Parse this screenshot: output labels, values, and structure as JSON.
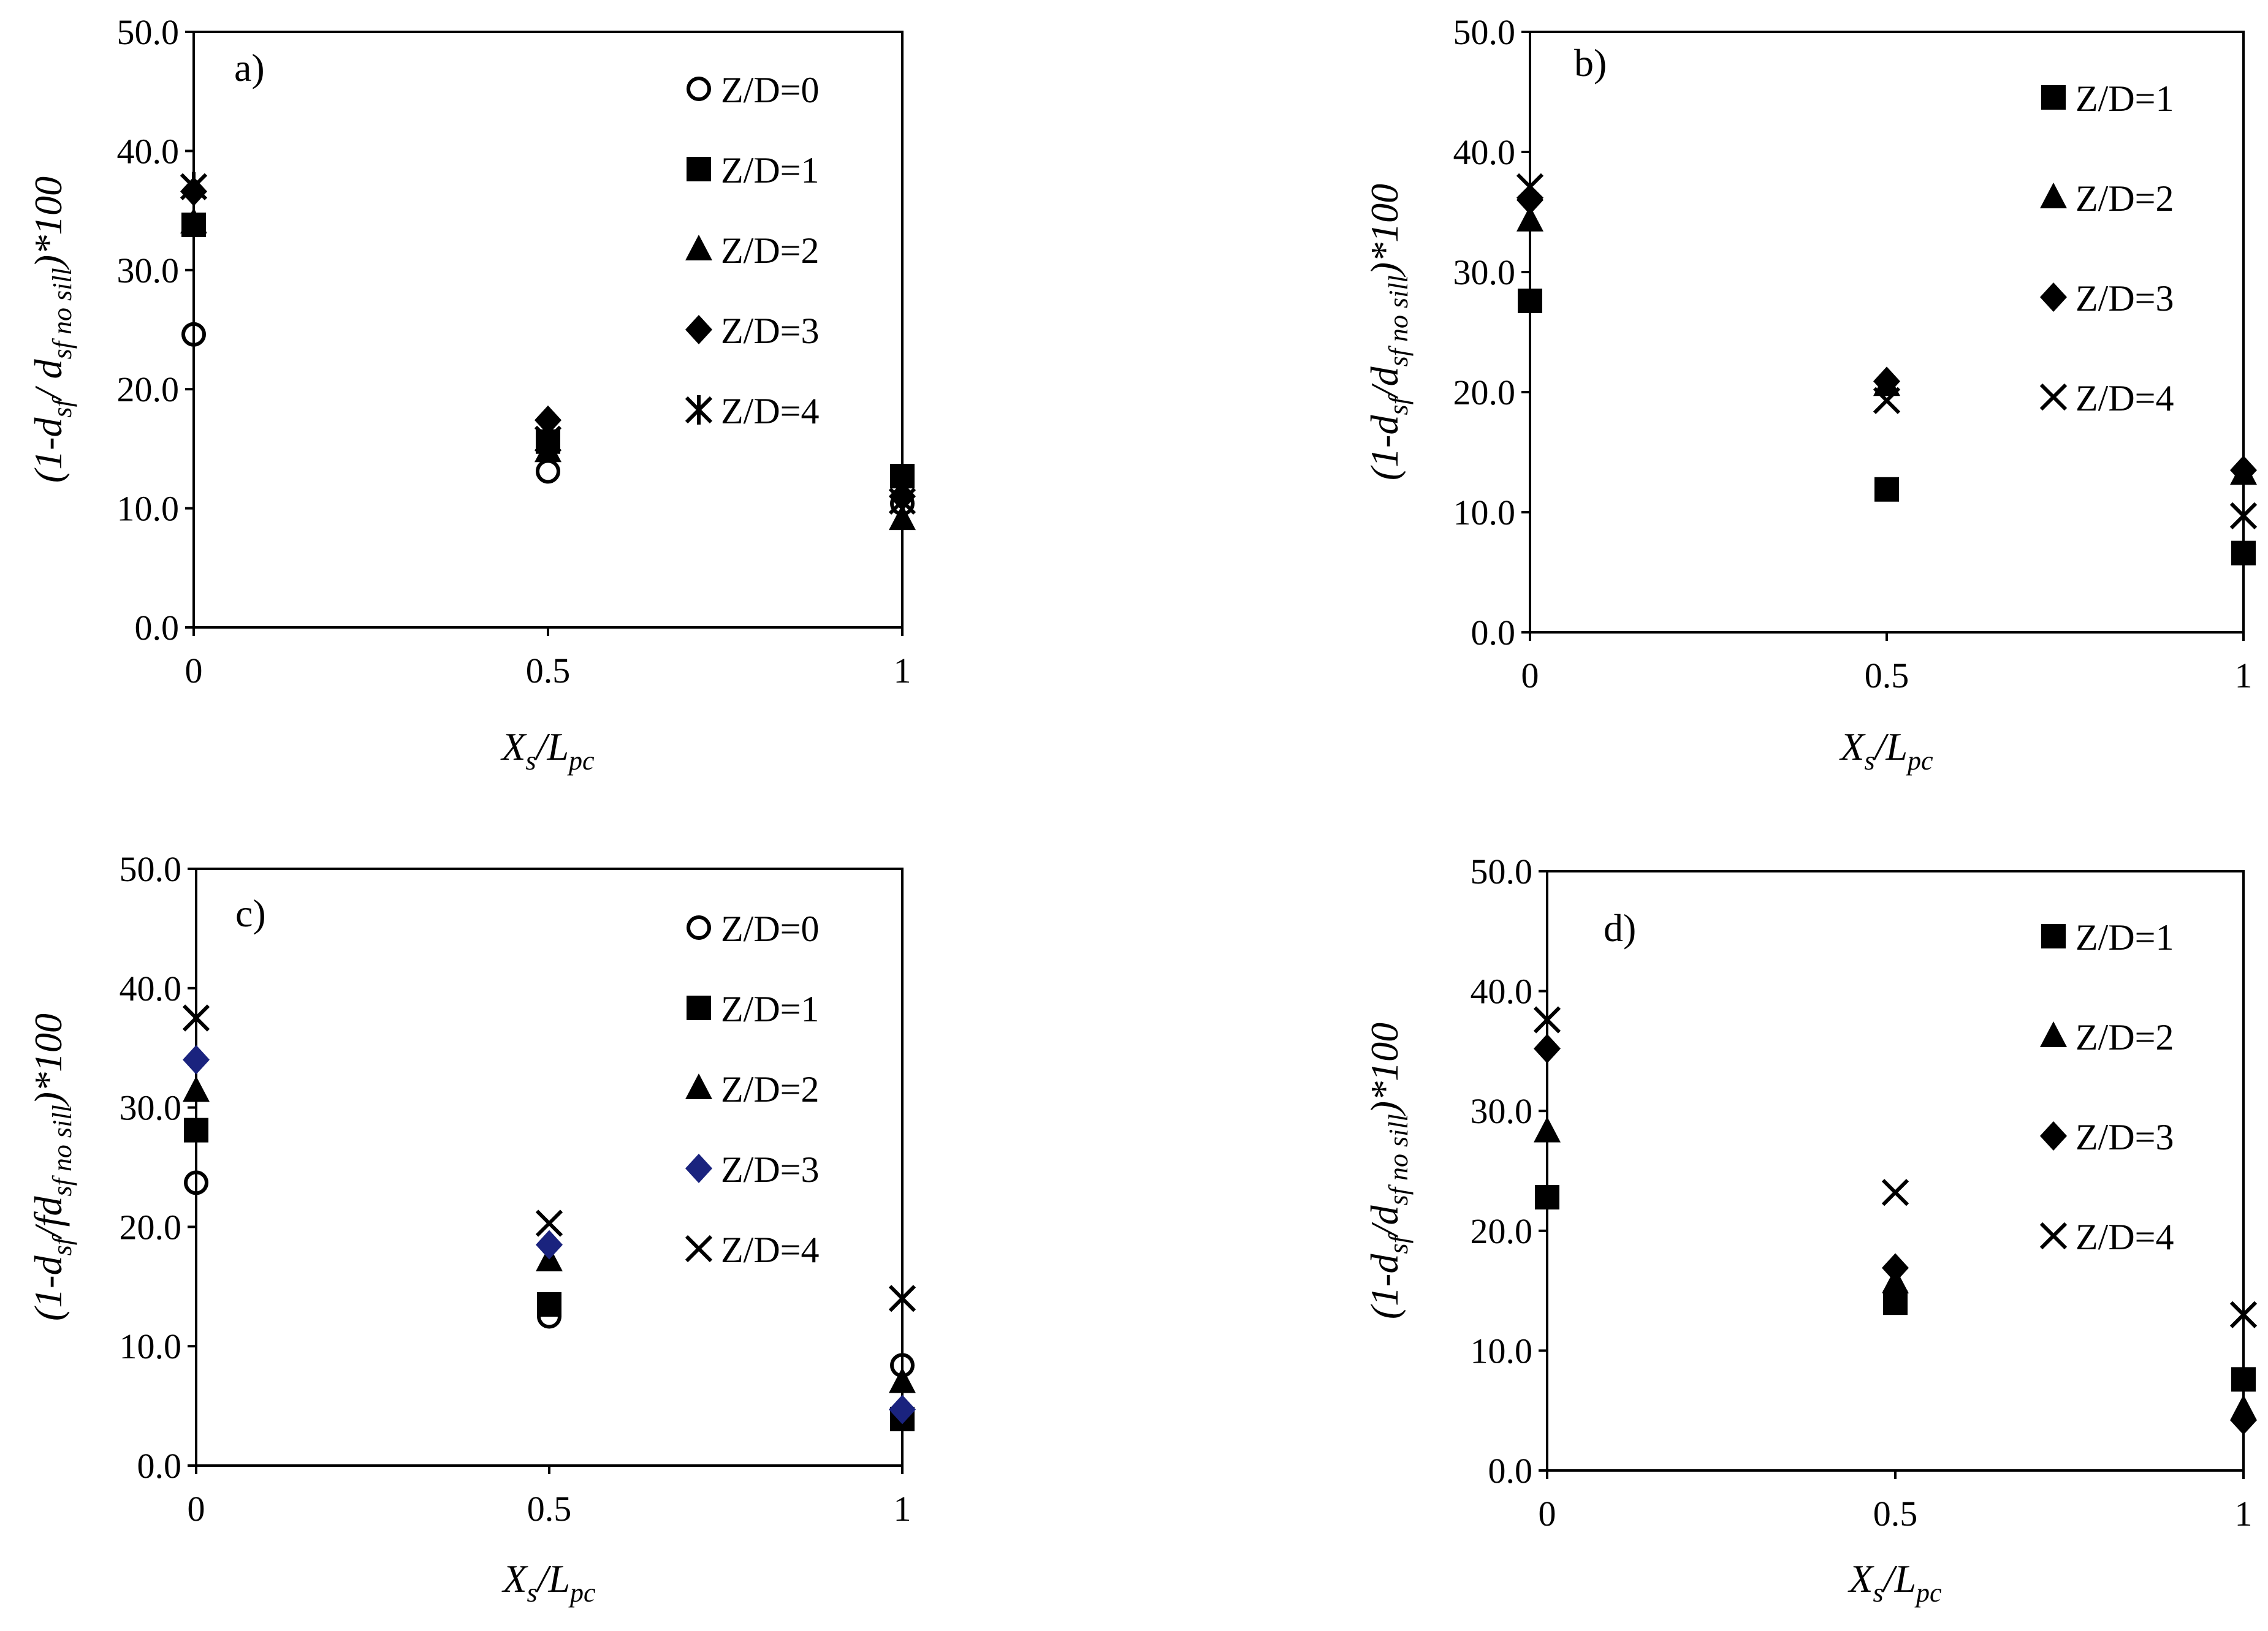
{
  "chart_data": [
    {
      "type": "scatter",
      "panel_label": "a)",
      "xlabel": {
        "main": "X",
        "sub1": "s",
        "mid": "/L",
        "sub2": "pc"
      },
      "ylabel": [
        "(1-d",
        {
          "sub": "sf"
        },
        "/ d",
        {
          "sub": "sf no sill"
        },
        ")*100"
      ],
      "x_ticks": [
        "0",
        "0.5",
        "1"
      ],
      "y_ticks": [
        "0.0",
        "10.0",
        "20.0",
        "30.0",
        "40.0",
        "50.0"
      ],
      "xlim": [
        0,
        1
      ],
      "ylim": [
        0,
        50
      ],
      "legend_position": "top-right",
      "series": [
        {
          "name": "Z/D=0",
          "marker": "circle",
          "color": "#000000",
          "x": [
            0,
            0.5,
            1
          ],
          "y": [
            24.6,
            13.1,
            10.4
          ]
        },
        {
          "name": "Z/D=1",
          "marker": "square",
          "color": "#000000",
          "x": [
            0,
            0.5,
            1
          ],
          "y": [
            33.8,
            15.6,
            12.7
          ]
        },
        {
          "name": "Z/D=2",
          "marker": "triangle",
          "color": "#000000",
          "x": [
            0,
            0.5,
            1
          ],
          "y": [
            34.0,
            14.8,
            9.1
          ]
        },
        {
          "name": "Z/D=3",
          "marker": "diamond",
          "color": "#000000",
          "x": [
            0,
            0.5,
            1
          ],
          "y": [
            36.6,
            17.4,
            11.0
          ]
        },
        {
          "name": "Z/D=4",
          "marker": "star",
          "color": "#000000",
          "x": [
            0,
            0.5,
            1
          ],
          "y": [
            37.0,
            15.8,
            10.6
          ]
        }
      ]
    },
    {
      "type": "scatter",
      "panel_label": "b)",
      "xlabel": {
        "main": "X",
        "sub1": "s",
        "mid": "/L",
        "sub2": "pc"
      },
      "ylabel": [
        "(1-d",
        {
          "sub": "sf"
        },
        "/d",
        {
          "sub": "sf no sill"
        },
        ")*100"
      ],
      "x_ticks": [
        "0",
        "0.5",
        "1"
      ],
      "y_ticks": [
        "0.0",
        "10.0",
        "20.0",
        "30.0",
        "40.0",
        "50.0"
      ],
      "xlim": [
        0,
        1
      ],
      "ylim": [
        0,
        50
      ],
      "legend_position": "top-right",
      "series": [
        {
          "name": "Z/D=1",
          "marker": "square",
          "color": "#000000",
          "x": [
            0,
            0.5,
            1
          ],
          "y": [
            27.6,
            11.9,
            6.6
          ]
        },
        {
          "name": "Z/D=2",
          "marker": "triangle",
          "color": "#000000",
          "x": [
            0,
            0.5,
            1
          ],
          "y": [
            34.3,
            20.6,
            13.2
          ]
        },
        {
          "name": "Z/D=3",
          "marker": "diamond",
          "color": "#000000",
          "x": [
            0,
            0.5,
            1
          ],
          "y": [
            36.0,
            20.9,
            13.5
          ]
        },
        {
          "name": "Z/D=4",
          "marker": "x",
          "color": "#000000",
          "x": [
            0,
            0.5,
            1
          ],
          "y": [
            37.1,
            19.3,
            9.7
          ]
        }
      ]
    },
    {
      "type": "scatter",
      "panel_label": "c)",
      "xlabel": {
        "main": "X",
        "sub1": "s",
        "mid": "/L",
        "sub2": "pc"
      },
      "ylabel": [
        "(1-d",
        {
          "sub": "sf"
        },
        "/fd",
        {
          "sub": "sf no sill"
        },
        ")*100"
      ],
      "x_ticks": [
        "0",
        "0.5",
        "1"
      ],
      "y_ticks": [
        "0.0",
        "10.0",
        "20.0",
        "30.0",
        "40.0",
        "50.0"
      ],
      "xlim": [
        0,
        1
      ],
      "ylim": [
        0,
        50
      ],
      "legend_position": "top-right",
      "series": [
        {
          "name": "Z/D=0",
          "marker": "circle",
          "color": "#000000",
          "x": [
            0,
            0.5,
            1
          ],
          "y": [
            23.7,
            12.5,
            8.4
          ]
        },
        {
          "name": "Z/D=1",
          "marker": "square",
          "color": "#000000",
          "x": [
            0,
            0.5,
            1
          ],
          "y": [
            28.1,
            13.5,
            3.9
          ]
        },
        {
          "name": "Z/D=2",
          "marker": "triangle",
          "color": "#000000",
          "x": [
            0,
            0.5,
            1
          ],
          "y": [
            31.4,
            17.2,
            7.0
          ]
        },
        {
          "name": "Z/D=3",
          "marker": "diamond",
          "color": "#1a237e",
          "x": [
            0,
            0.5,
            1
          ],
          "y": [
            34.0,
            18.5,
            4.7
          ]
        },
        {
          "name": "Z/D=4",
          "marker": "x",
          "color": "#000000",
          "x": [
            0,
            0.5,
            1
          ],
          "y": [
            37.5,
            20.3,
            14.0
          ]
        }
      ]
    },
    {
      "type": "scatter",
      "panel_label": "d)",
      "xlabel": {
        "main": "X",
        "sub1": "s",
        "mid": "/L",
        "sub2": "pc"
      },
      "ylabel": [
        "(1-d",
        {
          "sub": "sf"
        },
        "/d",
        {
          "sub": "sf no sill"
        },
        ")*100"
      ],
      "x_ticks": [
        "0",
        "0.5",
        "1"
      ],
      "y_ticks": [
        "0.0",
        "10.0",
        "20.0",
        "30.0",
        "40.0",
        "50.0"
      ],
      "xlim": [
        0,
        1
      ],
      "ylim": [
        0,
        50
      ],
      "legend_position": "top-right",
      "series": [
        {
          "name": "Z/D=1",
          "marker": "square",
          "color": "#000000",
          "x": [
            0,
            0.5,
            1
          ],
          "y": [
            22.8,
            14.0,
            7.6
          ]
        },
        {
          "name": "Z/D=2",
          "marker": "triangle",
          "color": "#000000",
          "x": [
            0,
            0.5,
            1
          ],
          "y": [
            28.3,
            15.7,
            5.1
          ]
        },
        {
          "name": "Z/D=3",
          "marker": "diamond",
          "color": "#000000",
          "x": [
            0,
            0.5,
            1
          ],
          "y": [
            35.2,
            16.9,
            4.2
          ]
        },
        {
          "name": "Z/D=4",
          "marker": "x",
          "color": "#000000",
          "x": [
            0,
            0.5,
            1
          ],
          "y": [
            37.6,
            23.2,
            13.0
          ]
        }
      ]
    }
  ]
}
